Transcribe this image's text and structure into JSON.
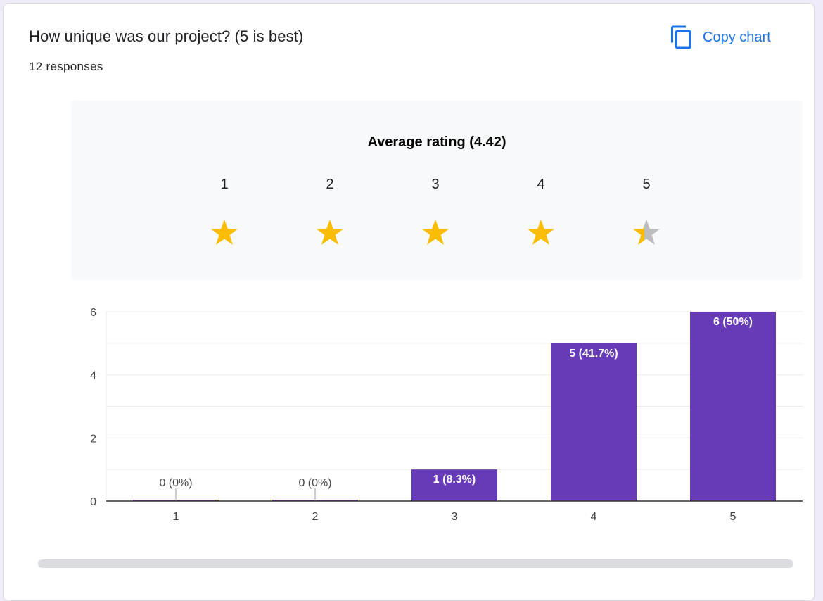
{
  "question": {
    "title": "How unique was our project? (5 is best)",
    "responses": "12 responses"
  },
  "copy": {
    "label": "Copy chart",
    "icon": "copy-icon"
  },
  "colors": {
    "accent": "#1a73e8",
    "bar": "#673ab7",
    "star_filled": "#fbbc04",
    "star_empty": "#bdbdbd"
  },
  "rating": {
    "label": "Average rating (4.42)",
    "value": 4.42,
    "max": 5,
    "levels": [
      "1",
      "2",
      "3",
      "4",
      "5"
    ]
  },
  "chart_data": {
    "type": "bar",
    "categories": [
      "1",
      "2",
      "3",
      "4",
      "5"
    ],
    "values": [
      0,
      0,
      1,
      5,
      6
    ],
    "data_labels": [
      "0 (0%)",
      "0 (0%)",
      "1 (8.3%)",
      "5 (41.7%)",
      "6 (50%)"
    ],
    "yticks": [
      "0",
      "2",
      "4",
      "6"
    ],
    "ylim": [
      0,
      6
    ],
    "title": "",
    "xlabel": "",
    "ylabel": "",
    "grid": true,
    "legend": "none"
  }
}
